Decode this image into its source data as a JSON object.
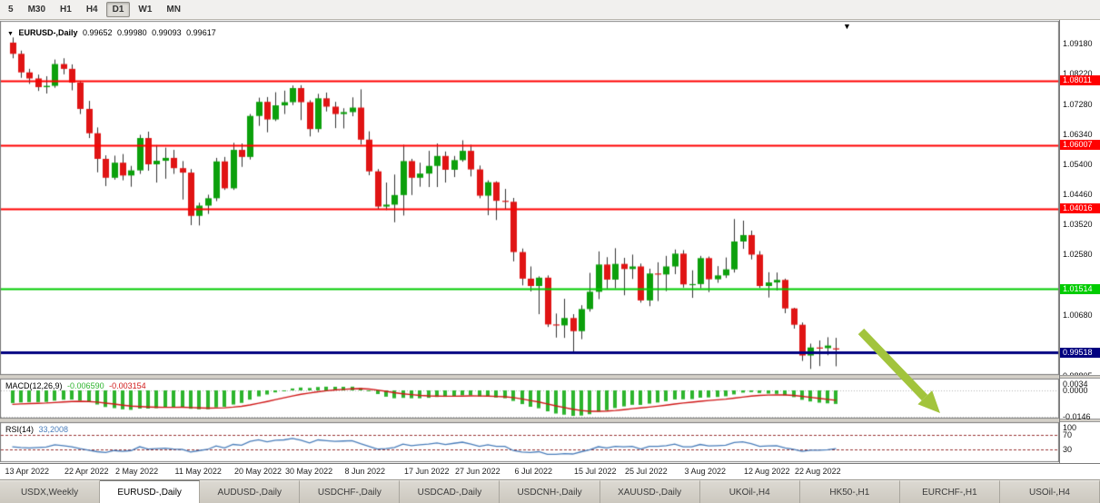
{
  "toolbar": {
    "timeframes": [
      "5",
      "M30",
      "H1",
      "H4",
      "D1",
      "W1",
      "MN"
    ],
    "active": "D1"
  },
  "chart": {
    "symbol_title": "EURUSD-,Daily",
    "ohlc": {
      "open": "0.99652",
      "high": "0.99980",
      "low": "0.99093",
      "close": "0.99617"
    },
    "end_marker": "▼",
    "colors": {
      "bull": "#0ca00c",
      "bear": "#e01414",
      "wick": "#333333",
      "macd_hist": "#2db42d",
      "macd_signal": "#d01818",
      "rsi_line": "#4a7ebb"
    },
    "y_ticks": [
      {
        "v": 1.0918,
        "label": "1.09180"
      },
      {
        "v": 1.0822,
        "label": "1.08220"
      },
      {
        "v": 1.0728,
        "label": "1.07280"
      },
      {
        "v": 1.0634,
        "label": "1.06340"
      },
      {
        "v": 1.054,
        "label": "1.05400"
      },
      {
        "v": 1.0446,
        "label": "1.04460"
      },
      {
        "v": 1.0352,
        "label": "1.03520"
      },
      {
        "v": 1.0258,
        "label": "1.02580"
      },
      {
        "v": 1.0068,
        "label": "1.00680"
      },
      {
        "v": 0.98805,
        "label": "0.98805"
      }
    ],
    "h_lines": [
      {
        "value": 1.08011,
        "label": "1.08011",
        "color": "#ff0000",
        "width": 2
      },
      {
        "value": 1.06007,
        "label": "1.06007",
        "color": "#ff0000",
        "width": 2
      },
      {
        "value": 1.04016,
        "label": "1.04016",
        "color": "#ff0000",
        "width": 2
      },
      {
        "value": 1.01514,
        "label": "1.01514",
        "color": "#00cc00",
        "width": 2
      },
      {
        "value": 0.99518,
        "label": "0.99518",
        "color": "#000080",
        "width": 3
      }
    ],
    "x_labels": [
      {
        "i": 0,
        "label": "13 Apr 2022"
      },
      {
        "i": 7,
        "label": "22 Apr 2022"
      },
      {
        "i": 13,
        "label": "2 May 2022"
      },
      {
        "i": 20,
        "label": "11 May 2022"
      },
      {
        "i": 27,
        "label": "20 May 2022"
      },
      {
        "i": 33,
        "label": "30 May 2022"
      },
      {
        "i": 40,
        "label": "8 Jun 2022"
      },
      {
        "i": 47,
        "label": "17 Jun 2022"
      },
      {
        "i": 53,
        "label": "27 Jun 2022"
      },
      {
        "i": 60,
        "label": "6 Jul 2022"
      },
      {
        "i": 67,
        "label": "15 Jul 2022"
      },
      {
        "i": 73,
        "label": "25 Jul 2022"
      },
      {
        "i": 80,
        "label": "3 Aug 2022"
      },
      {
        "i": 87,
        "label": "12 Aug 2022"
      },
      {
        "i": 93,
        "label": "22 Aug 2022"
      }
    ],
    "candles": [
      [
        1.092,
        1.0936,
        1.0871,
        1.0885
      ],
      [
        1.0885,
        1.0895,
        1.081,
        1.0827
      ],
      [
        1.0827,
        1.0838,
        1.0791,
        1.0808
      ],
      [
        1.0808,
        1.082,
        1.0769,
        1.0781
      ],
      [
        1.0781,
        1.0815,
        1.0761,
        1.0785
      ],
      [
        1.0785,
        1.0867,
        1.0779,
        1.0853
      ],
      [
        1.0853,
        1.0871,
        1.0821,
        1.0838
      ],
      [
        1.0838,
        1.0852,
        1.0771,
        1.0795
      ],
      [
        1.0795,
        1.0801,
        1.0697,
        1.0713
      ],
      [
        1.0713,
        1.0738,
        1.0622,
        1.0637
      ],
      [
        1.0637,
        1.0655,
        1.0515,
        1.0557
      ],
      [
        1.0557,
        1.0568,
        1.0472,
        1.0498
      ],
      [
        1.0498,
        1.0567,
        1.0492,
        1.0545
      ],
      [
        1.0545,
        1.0572,
        1.049,
        1.0505
      ],
      [
        1.0505,
        1.0535,
        1.047,
        1.0521
      ],
      [
        1.0521,
        1.0632,
        1.051,
        1.0622
      ],
      [
        1.0622,
        1.0642,
        1.052,
        1.054
      ],
      [
        1.054,
        1.06,
        1.0483,
        1.0551
      ],
      [
        1.0551,
        1.0592,
        1.0495,
        1.056
      ],
      [
        1.056,
        1.0585,
        1.051,
        1.0528
      ],
      [
        1.0528,
        1.055,
        1.043,
        1.0514
      ],
      [
        1.0514,
        1.0525,
        1.035,
        1.0379
      ],
      [
        1.0379,
        1.042,
        1.0349,
        1.0411
      ],
      [
        1.0411,
        1.0445,
        1.0385,
        1.0434
      ],
      [
        1.0434,
        1.056,
        1.0425,
        1.0549
      ],
      [
        1.0549,
        1.0563,
        1.046,
        1.0465
      ],
      [
        1.0465,
        1.0607,
        1.046,
        1.0585
      ],
      [
        1.0585,
        1.0605,
        1.0532,
        1.0563
      ],
      [
        1.0563,
        1.0697,
        1.0555,
        1.0691
      ],
      [
        1.0691,
        1.0748,
        1.066,
        1.0735
      ],
      [
        1.0735,
        1.075,
        1.064,
        1.068
      ],
      [
        1.068,
        1.0765,
        1.0675,
        1.0724
      ],
      [
        1.0724,
        1.077,
        1.0697,
        1.0734
      ],
      [
        1.0734,
        1.0786,
        1.0725,
        1.0778
      ],
      [
        1.0778,
        1.0787,
        1.0678,
        1.0734
      ],
      [
        1.0734,
        1.074,
        1.0627,
        1.065
      ],
      [
        1.065,
        1.076,
        1.064,
        1.0746
      ],
      [
        1.0746,
        1.0764,
        1.0705,
        1.072
      ],
      [
        1.072,
        1.0735,
        1.0653,
        1.0697
      ],
      [
        1.0697,
        1.0715,
        1.0652,
        1.0703
      ],
      [
        1.0703,
        1.0749,
        1.069,
        1.0717
      ],
      [
        1.0717,
        1.0774,
        1.0602,
        1.0617
      ],
      [
        1.0617,
        1.0643,
        1.0506,
        1.0518
      ],
      [
        1.0518,
        1.0525,
        1.0399,
        1.0408
      ],
      [
        1.0408,
        1.0483,
        1.0397,
        1.0414
      ],
      [
        1.0414,
        1.0508,
        1.0359,
        1.0444
      ],
      [
        1.0444,
        1.0601,
        1.038,
        1.055
      ],
      [
        1.055,
        1.0557,
        1.0444,
        1.0498
      ],
      [
        1.0498,
        1.0545,
        1.047,
        1.0511
      ],
      [
        1.0511,
        1.0582,
        1.0469,
        1.0535
      ],
      [
        1.0535,
        1.0605,
        1.0469,
        1.0566
      ],
      [
        1.0566,
        1.058,
        1.0483,
        1.0523
      ],
      [
        1.0523,
        1.0566,
        1.05,
        1.0553
      ],
      [
        1.0553,
        1.0615,
        1.0548,
        1.0582
      ],
      [
        1.0582,
        1.0601,
        1.0502,
        1.0524
      ],
      [
        1.0524,
        1.0536,
        1.0434,
        1.0442
      ],
      [
        1.0442,
        1.049,
        1.0381,
        1.0484
      ],
      [
        1.0484,
        1.0487,
        1.0366,
        1.0426
      ],
      [
        1.0426,
        1.0463,
        1.04,
        1.0423
      ],
      [
        1.0423,
        1.0435,
        1.0237,
        1.0266
      ],
      [
        1.0266,
        1.0277,
        1.0162,
        1.0183
      ],
      [
        1.0183,
        1.0221,
        1.0143,
        1.016
      ],
      [
        1.016,
        1.019,
        1.0072,
        1.0186
      ],
      [
        1.0186,
        1.0193,
        1.0032,
        1.004
      ],
      [
        1.004,
        1.0074,
        0.9999,
        1.0037
      ],
      [
        1.0037,
        1.012,
        0.9998,
        1.006
      ],
      [
        1.006,
        1.0072,
        0.9952,
        1.0019
      ],
      [
        1.0019,
        1.01,
        0.9994,
        1.0088
      ],
      [
        1.0088,
        1.0201,
        1.008,
        1.0142
      ],
      [
        1.0142,
        1.0268,
        1.0119,
        1.0227
      ],
      [
        1.0227,
        1.025,
        1.0152,
        1.018
      ],
      [
        1.018,
        1.0278,
        1.0153,
        1.0229
      ],
      [
        1.0229,
        1.0248,
        1.0131,
        1.0213
      ],
      [
        1.0213,
        1.0258,
        1.0182,
        1.0221
      ],
      [
        1.0221,
        1.023,
        1.0108,
        1.0115
      ],
      [
        1.0115,
        1.0214,
        1.0097,
        1.0199
      ],
      [
        1.0199,
        1.0234,
        1.0113,
        1.0196
      ],
      [
        1.0196,
        1.0254,
        1.0144,
        1.0221
      ],
      [
        1.0221,
        1.0274,
        1.0197,
        1.0261
      ],
      [
        1.0261,
        1.0272,
        1.0155,
        1.0165
      ],
      [
        1.0165,
        1.0209,
        1.0123,
        1.0166
      ],
      [
        1.0166,
        1.0254,
        1.0153,
        1.0247
      ],
      [
        1.0247,
        1.0252,
        1.0141,
        1.0181
      ],
      [
        1.0181,
        1.0222,
        1.017,
        1.0193
      ],
      [
        1.0193,
        1.0249,
        1.0185,
        1.0212
      ],
      [
        1.0212,
        1.0369,
        1.0202,
        1.0299
      ],
      [
        1.0299,
        1.0364,
        1.0276,
        1.0319
      ],
      [
        1.0319,
        1.0333,
        1.0243,
        1.0258
      ],
      [
        1.0258,
        1.0269,
        1.0154,
        1.016
      ],
      [
        1.016,
        1.0203,
        1.0124,
        1.0171
      ],
      [
        1.0171,
        1.0202,
        1.0146,
        1.0179
      ],
      [
        1.0179,
        1.0183,
        1.0075,
        1.009
      ],
      [
        1.009,
        1.0092,
        1.0027,
        1.0039
      ],
      [
        1.0039,
        1.0046,
        0.9926,
        0.9943
      ],
      [
        0.9943,
        0.998,
        0.9901,
        0.9968
      ],
      [
        0.9968,
        0.999,
        0.991,
        0.9966
      ],
      [
        0.9966,
        1.0,
        0.9944,
        0.9974
      ],
      [
        0.99652,
        0.9998,
        0.99093,
        0.99617
      ]
    ]
  },
  "macd": {
    "label": "MACD(12,26,9)",
    "main_value": "-0.006590",
    "signal_value": "-0.003154",
    "axis": [
      {
        "v": 0.0034,
        "label": "0.0034"
      },
      {
        "v": 0.0,
        "label": "0.0000"
      },
      {
        "v": -0.0146,
        "label": "-0.0146"
      }
    ]
  },
  "rsi": {
    "label": "RSI(14)",
    "value": "33,2008",
    "scale_labels": [
      100,
      70,
      30
    ],
    "levels_dashed": [
      70,
      30
    ],
    "values": [
      38,
      36,
      35,
      36,
      37,
      43,
      41,
      38,
      33,
      29,
      25,
      23,
      28,
      26,
      28,
      38,
      32,
      33,
      34,
      32,
      31,
      24,
      28,
      31,
      40,
      35,
      44,
      42,
      52,
      56,
      51,
      55,
      56,
      60,
      55,
      48,
      56,
      54,
      52,
      53,
      54,
      46,
      39,
      32,
      33,
      36,
      45,
      41,
      43,
      45,
      48,
      44,
      47,
      50,
      45,
      39,
      43,
      39,
      39,
      28,
      24,
      23,
      25,
      18,
      18,
      20,
      19,
      25,
      30,
      38,
      35,
      39,
      38,
      39,
      32,
      39,
      39,
      41,
      45,
      38,
      38,
      44,
      40,
      41,
      42,
      49,
      51,
      46,
      39,
      40,
      41,
      35,
      31,
      26,
      29,
      29,
      30,
      33
    ]
  },
  "tabs": {
    "items": [
      "USDX,Weekly",
      "EURUSD-,Daily",
      "AUDUSD-,Daily",
      "USDCHF-,Daily",
      "USDCAD-,Daily",
      "USDCNH-,Daily",
      "XAUUSD-,Daily",
      "UKOil-,H4",
      "HK50-,H1",
      "EURCHF-,H1",
      "USOil-,H4"
    ],
    "active_index": 1
  },
  "annotations": {
    "arrow": {
      "color": "#a2c43c",
      "direction": "down-right"
    }
  }
}
